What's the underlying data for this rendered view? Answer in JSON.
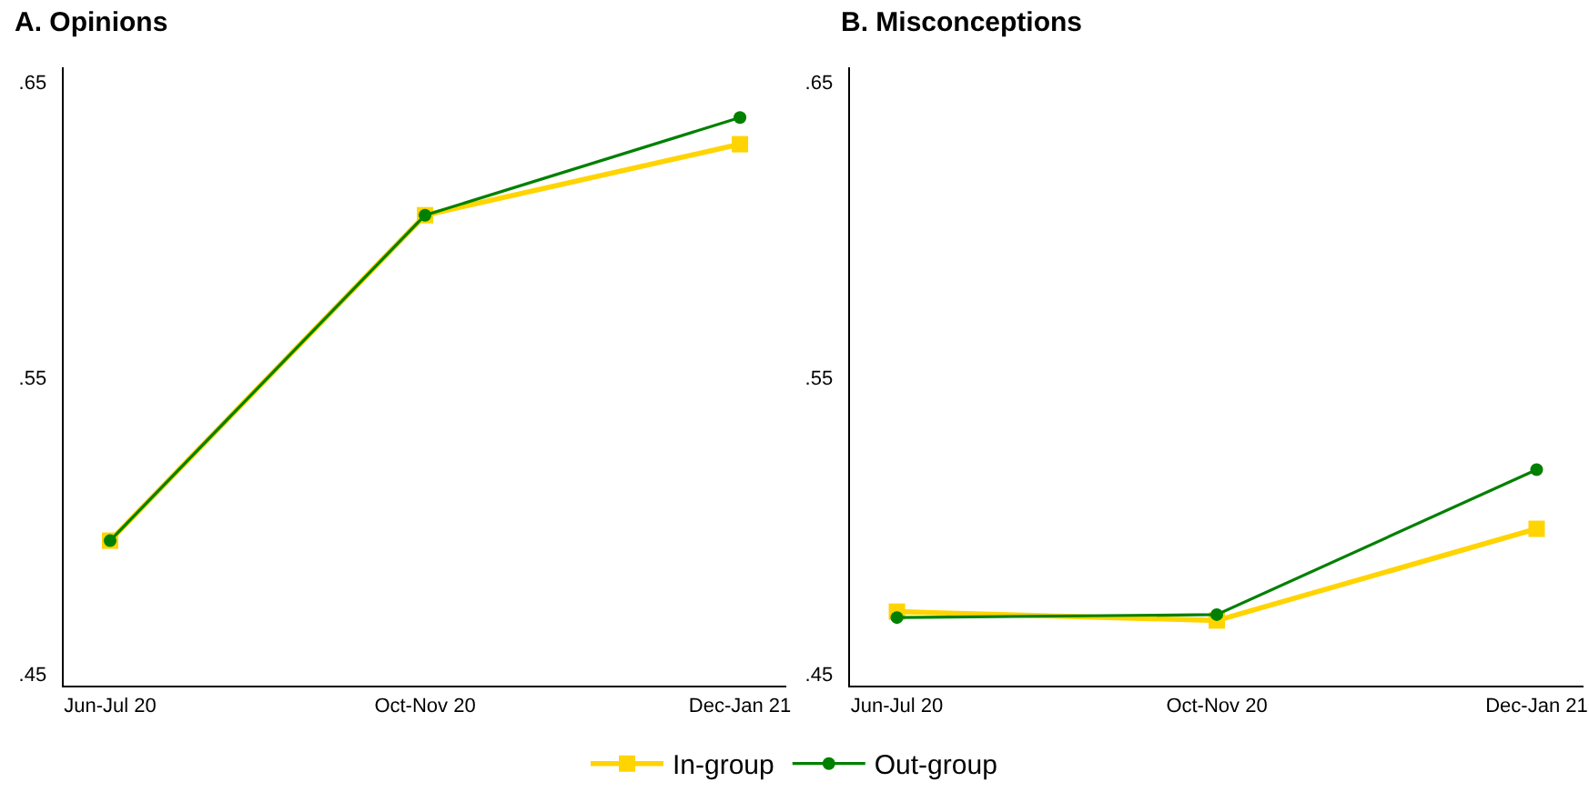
{
  "chart_data": [
    {
      "type": "line",
      "title": "A. Opinions",
      "categories": [
        "Jun-Jul 20",
        "Oct-Nov 20",
        "Dec-Jan 21"
      ],
      "series": [
        {
          "color": "#ffd400",
          "marker": "square",
          "values": [
            0.495,
            0.605,
            0.629
          ]
        },
        {
          "color": "#008000",
          "marker": "circle",
          "values": [
            0.495,
            0.605,
            0.638
          ]
        }
      ],
      "ylim": [
        0.446,
        0.655
      ],
      "yticks": [
        {
          "value": 0.45,
          "label": ".45"
        },
        {
          "value": 0.55,
          "label": ".55"
        },
        {
          "value": 0.65,
          "label": ".65"
        }
      ],
      "grid": false,
      "legend": false
    },
    {
      "type": "line",
      "title": "B. Misconceptions",
      "categories": [
        "Jun-Jul 20",
        "Oct-Nov 20",
        "Dec-Jan 21"
      ],
      "series": [
        {
          "name": "In-group",
          "color": "#ffd400",
          "marker": "square",
          "values": [
            0.471,
            0.468,
            0.499
          ]
        },
        {
          "name": "Out-group",
          "color": "#008000",
          "marker": "circle",
          "values": [
            0.469,
            0.47,
            0.519
          ]
        }
      ],
      "ylim": [
        0.446,
        0.655
      ],
      "yticks": [
        {
          "value": 0.45,
          "label": ".45"
        },
        {
          "value": 0.55,
          "label": ".55"
        },
        {
          "value": 0.65,
          "label": ".65"
        }
      ],
      "grid": false,
      "legend": "bottom"
    }
  ]
}
